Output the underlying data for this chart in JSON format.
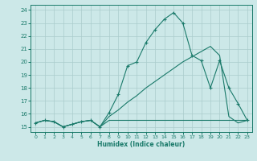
{
  "xlabel": "Humidex (Indice chaleur)",
  "bg_color": "#cce8e8",
  "grid_color": "#aacccc",
  "line_color": "#1a7a6a",
  "xlim": [
    -0.5,
    23.5
  ],
  "ylim": [
    14.6,
    24.4
  ],
  "xticks": [
    0,
    1,
    2,
    3,
    4,
    5,
    6,
    7,
    8,
    9,
    10,
    11,
    12,
    13,
    14,
    15,
    16,
    17,
    18,
    19,
    20,
    21,
    22,
    23
  ],
  "yticks": [
    15,
    16,
    17,
    18,
    19,
    20,
    21,
    22,
    23,
    24
  ],
  "line1_x": [
    0,
    1,
    2,
    3,
    4,
    5,
    6,
    7,
    8,
    9,
    10,
    11,
    12,
    13,
    14,
    15,
    16,
    17,
    18,
    19,
    20,
    21,
    22,
    23
  ],
  "line1_y": [
    15.3,
    15.5,
    15.4,
    15.0,
    15.2,
    15.4,
    15.5,
    15.0,
    16.1,
    17.5,
    19.7,
    20.0,
    21.5,
    22.5,
    23.3,
    23.8,
    23.0,
    20.5,
    20.1,
    18.0,
    20.1,
    18.0,
    16.8,
    15.5
  ],
  "line2_x": [
    0,
    1,
    2,
    3,
    4,
    5,
    6,
    7,
    8,
    9,
    10,
    11,
    12,
    13,
    14,
    15,
    16,
    17,
    18,
    19,
    20,
    21,
    22,
    23
  ],
  "line2_y": [
    15.3,
    15.5,
    15.4,
    15.0,
    15.2,
    15.4,
    15.5,
    15.0,
    15.5,
    15.5,
    15.5,
    15.5,
    15.5,
    15.5,
    15.5,
    15.5,
    15.5,
    15.5,
    15.5,
    15.5,
    15.5,
    15.5,
    15.5,
    15.5
  ],
  "line3_x": [
    0,
    1,
    2,
    3,
    4,
    5,
    6,
    7,
    8,
    9,
    10,
    11,
    12,
    13,
    14,
    15,
    16,
    17,
    18,
    19,
    20,
    21,
    22,
    23
  ],
  "line3_y": [
    15.3,
    15.5,
    15.4,
    15.0,
    15.2,
    15.4,
    15.5,
    15.0,
    15.8,
    16.3,
    16.9,
    17.4,
    18.0,
    18.5,
    19.0,
    19.5,
    20.0,
    20.4,
    20.8,
    21.2,
    20.5,
    15.8,
    15.3,
    15.5
  ]
}
